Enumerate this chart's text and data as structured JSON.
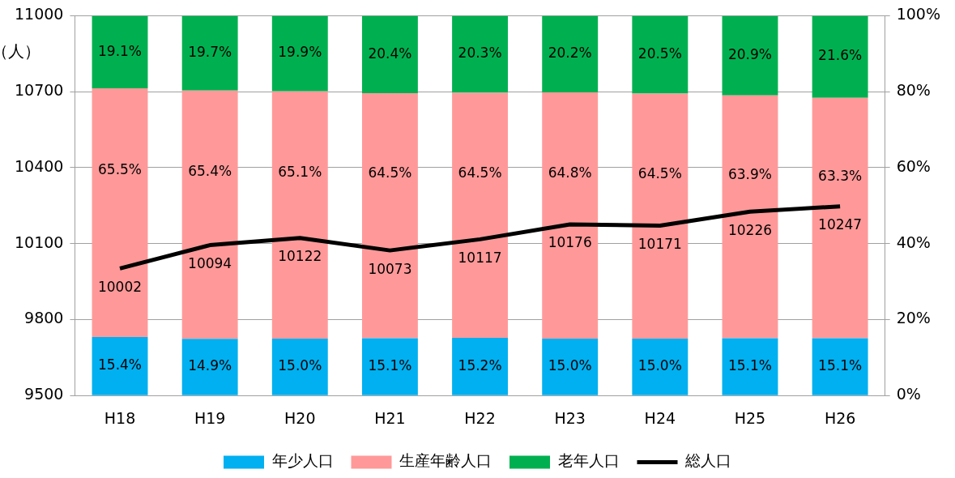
{
  "chart_data": {
    "type": "bar",
    "stacked": true,
    "ylabel": "（人）",
    "categories": [
      "H18",
      "H19",
      "H20",
      "H21",
      "H22",
      "H23",
      "H24",
      "H25",
      "H26"
    ],
    "series": [
      {
        "name": "年少人口",
        "color": "#00b0f0",
        "axis": "y2",
        "values": [
          15.4,
          14.9,
          15.0,
          15.1,
          15.2,
          15.0,
          15.0,
          15.1,
          15.1
        ],
        "value_labels": [
          "15.4%",
          "14.9%",
          "15.0%",
          "15.1%",
          "15.2%",
          "15.0%",
          "15.0%",
          "15.1%",
          "15.1%"
        ]
      },
      {
        "name": "生産年齢人口",
        "color": "#ff9999",
        "axis": "y2",
        "values": [
          65.5,
          65.4,
          65.1,
          64.5,
          64.5,
          64.8,
          64.5,
          63.9,
          63.3
        ],
        "value_labels": [
          "65.5%",
          "65.4%",
          "65.1%",
          "64.5%",
          "64.5%",
          "64.8%",
          "64.5%",
          "63.9%",
          "63.3%"
        ]
      },
      {
        "name": "老年人口",
        "color": "#00b050",
        "axis": "y2",
        "values": [
          19.1,
          19.7,
          19.9,
          20.4,
          20.3,
          20.2,
          20.5,
          20.9,
          21.6
        ],
        "value_labels": [
          "19.1%",
          "19.7%",
          "19.9%",
          "20.4%",
          "20.3%",
          "20.2%",
          "20.5%",
          "20.9%",
          "21.6%"
        ]
      },
      {
        "name": "総人口",
        "type": "line",
        "color": "#000000",
        "axis": "y",
        "values": [
          10002,
          10094,
          10122,
          10073,
          10117,
          10176,
          10171,
          10226,
          10247
        ],
        "value_labels": [
          "10002",
          "10094",
          "10122",
          "10073",
          "10117",
          "10176",
          "10171",
          "10226",
          "10247"
        ]
      }
    ],
    "ylim": [
      9500,
      11000
    ],
    "yticks": [
      9500,
      9800,
      10100,
      10400,
      10700,
      11000
    ],
    "y2lim": [
      0,
      100
    ],
    "y2ticks": [
      {
        "value": 0,
        "label": "0%"
      },
      {
        "value": 20,
        "label": "20%"
      },
      {
        "value": 40,
        "label": "40%"
      },
      {
        "value": 60,
        "label": "60%"
      },
      {
        "value": 80,
        "label": "80%"
      },
      {
        "value": 100,
        "label": "100%"
      }
    ],
    "grid": "y",
    "legend": "bottom",
    "marker": "none",
    "line_style": "solid"
  }
}
